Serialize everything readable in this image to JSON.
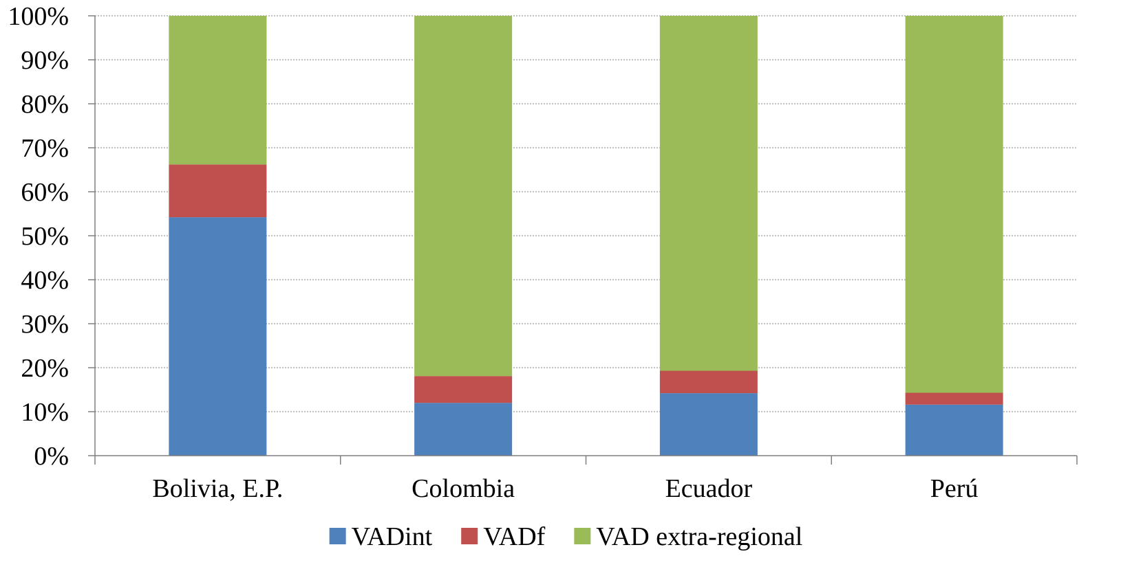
{
  "chart_data": {
    "type": "bar",
    "stacked": true,
    "percent": true,
    "title": "",
    "xlabel": "",
    "ylabel": "",
    "ylim": [
      0,
      100
    ],
    "yticks": [
      "0%",
      "10%",
      "20%",
      "30%",
      "40%",
      "50%",
      "60%",
      "70%",
      "80%",
      "90%",
      "100%"
    ],
    "grid": "horizontal dotted",
    "legend_position": "bottom",
    "categories": [
      "Bolivia, E.P.",
      "Colombia",
      "Ecuador",
      "Perú"
    ],
    "series": [
      {
        "name": "VADint",
        "color": "#4F81BD",
        "values": [
          54.2,
          12.0,
          14.2,
          11.6
        ]
      },
      {
        "name": "VADf",
        "color": "#C0504D",
        "values": [
          12.0,
          6.1,
          5.1,
          2.7
        ]
      },
      {
        "name": "VAD extra-regional",
        "color": "#9BBB59",
        "values": [
          33.8,
          81.9,
          80.7,
          85.7
        ]
      }
    ]
  }
}
